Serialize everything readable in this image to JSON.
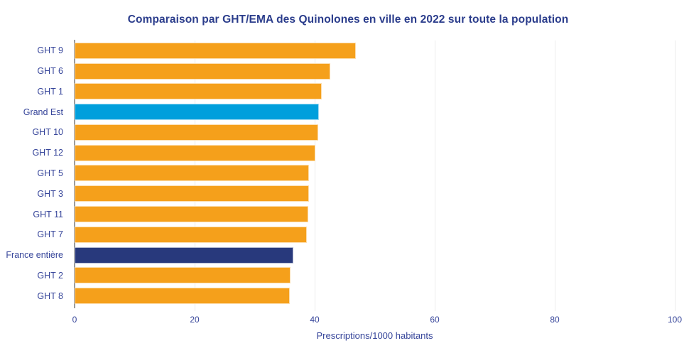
{
  "title": "Comparaison par GHT/EMA des Quinolones en ville en 2022 sur toute la population",
  "chart_data": {
    "type": "bar",
    "orientation": "horizontal",
    "title": "Comparaison par GHT/EMA des Quinolones en ville en 2022 sur toute la population",
    "xlabel": "Prescriptions/1000 habitants",
    "ylabel": "",
    "xlim": [
      0,
      100
    ],
    "xticks": [
      0,
      20,
      40,
      60,
      80,
      100
    ],
    "grid": true,
    "legend": "none",
    "categories": [
      "GHT 9",
      "GHT 6",
      "GHT 1",
      "Grand Est",
      "GHT 10",
      "GHT 12",
      "GHT 5",
      "GHT 3",
      "GHT 11",
      "GHT 7",
      "France entière",
      "GHT 2",
      "GHT 8"
    ],
    "values": [
      46.9,
      42.6,
      41.2,
      40.7,
      40.6,
      40.1,
      39.1,
      39.0,
      38.9,
      38.7,
      36.5,
      36.0,
      35.9
    ],
    "bar_colors": [
      "#F5A01B",
      "#F5A01B",
      "#F5A01B",
      "#009FDC",
      "#F5A01B",
      "#F5A01B",
      "#F5A01B",
      "#F5A01B",
      "#F5A01B",
      "#F5A01B",
      "#28397C",
      "#F5A01B",
      "#F5A01B"
    ]
  },
  "theme": {
    "background": "#FFFFFF",
    "title_color": "#2B3D8C",
    "label_color": "#36459A",
    "gridline_color": "#ECECEC",
    "axis_line_color": "#9B9B9B",
    "bar_default_color": "#F5A01B",
    "highlight_region_color": "#009FDC",
    "highlight_national_color": "#28397C"
  }
}
